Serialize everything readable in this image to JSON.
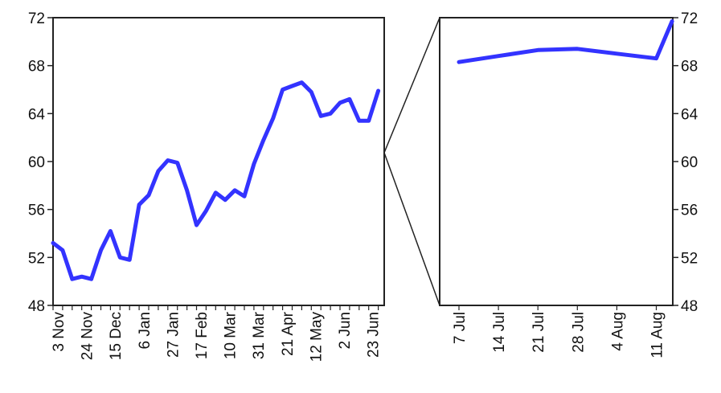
{
  "chart_data": [
    {
      "type": "line",
      "title": "",
      "xlabel": "",
      "ylabel": "",
      "ylim": [
        48,
        72
      ],
      "yticks": [
        48,
        52,
        56,
        60,
        64,
        68,
        72
      ],
      "xtick_labels": [
        "3 Nov",
        "24 Nov",
        "15 Dec",
        "6 Jan",
        "27 Jan",
        "17 Feb",
        "10 Mar",
        "31 Mar",
        "21 Apr",
        "12 May",
        "2 Jun",
        "23 Jun"
      ],
      "x": [
        "3 Nov",
        "10 Nov",
        "17 Nov",
        "24 Nov",
        "1 Dec",
        "8 Dec",
        "15 Dec",
        "22 Dec",
        "29 Dec",
        "6 Jan",
        "13 Jan",
        "20 Jan",
        "27 Jan",
        "3 Feb",
        "10 Feb",
        "17 Feb",
        "24 Feb",
        "3 Mar",
        "10 Mar",
        "17 Mar",
        "24 Mar",
        "31 Mar",
        "7 Apr",
        "14 Apr",
        "21 Apr",
        "28 Apr",
        "5 May",
        "12 May",
        "19 May",
        "26 May",
        "2 Jun",
        "9 Jun",
        "16 Jun",
        "23 Jun",
        "30 Jun"
      ],
      "series": [
        {
          "color": "#3333ff",
          "values": [
            53.2,
            52.6,
            50.2,
            50.4,
            50.2,
            52.6,
            54.2,
            52.0,
            51.8,
            56.4,
            57.2,
            59.2,
            60.1,
            59.9,
            57.6,
            54.7,
            55.9,
            57.4,
            56.8,
            57.6,
            57.1,
            59.8,
            61.8,
            63.6,
            66.0,
            66.3,
            66.6,
            65.8,
            63.8,
            64.0,
            64.9,
            65.2,
            63.4,
            63.4,
            65.9
          ]
        }
      ]
    },
    {
      "type": "line",
      "title": "",
      "xlabel": "",
      "ylabel": "",
      "ylim": [
        48,
        72
      ],
      "yticks": [
        48,
        52,
        56,
        60,
        64,
        68,
        72
      ],
      "xtick_labels": [
        "7 Jul",
        "14 Jul",
        "21 Jul",
        "28 Jul",
        "4 Aug",
        "11 Aug"
      ],
      "x": [
        "7 Jul",
        "14 Jul",
        "21 Jul",
        "28 Jul",
        "4 Aug",
        "11 Aug",
        "14 Aug"
      ],
      "series": [
        {
          "color": "#3333ff",
          "values": [
            68.3,
            68.8,
            69.3,
            69.4,
            69.0,
            68.6,
            71.7
          ]
        }
      ]
    }
  ],
  "colors": {
    "line": "#3333ff",
    "axes": "#222222"
  }
}
